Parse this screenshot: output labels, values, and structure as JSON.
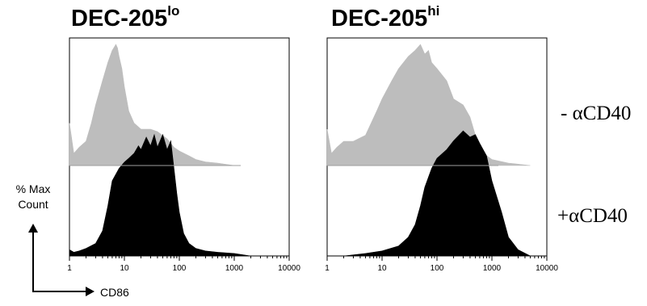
{
  "chart_data": [
    {
      "type": "area",
      "title": "DEC-205",
      "title_superscript": "lo",
      "xscale": "log",
      "xlim": [
        1,
        10000
      ],
      "xticks": [
        "1",
        "10",
        "100",
        "1000",
        "10000"
      ],
      "xlabel": "CD86",
      "ylabel": "% Max Count",
      "series": [
        {
          "name": "- αCD40",
          "color": "#bdbdbd",
          "x": [
            1,
            1.2,
            1.5,
            2,
            2.5,
            3,
            4,
            5,
            6,
            7,
            7.5,
            8,
            9,
            10,
            12,
            15,
            20,
            30,
            40,
            60,
            80,
            100,
            150,
            200,
            300,
            500,
            1000
          ],
          "y": [
            0.35,
            0.1,
            0.15,
            0.2,
            0.35,
            0.5,
            0.7,
            0.85,
            0.95,
            1.0,
            0.97,
            0.9,
            0.8,
            0.65,
            0.45,
            0.35,
            0.3,
            0.3,
            0.28,
            0.22,
            0.15,
            0.12,
            0.08,
            0.05,
            0.03,
            0.02,
            0.0
          ]
        },
        {
          "name": "+αCD40",
          "color": "#000000",
          "x": [
            1,
            1.2,
            1.5,
            2,
            3,
            4,
            5,
            6,
            8,
            10,
            12,
            15,
            18,
            20,
            25,
            30,
            35,
            40,
            50,
            60,
            70,
            80,
            90,
            100,
            120,
            150,
            200,
            300,
            500,
            1000,
            2000
          ],
          "y": [
            0.05,
            0.03,
            0.04,
            0.06,
            0.1,
            0.2,
            0.4,
            0.6,
            0.7,
            0.75,
            0.78,
            0.82,
            0.88,
            0.85,
            0.95,
            0.88,
            0.97,
            0.87,
            0.97,
            0.85,
            0.92,
            0.7,
            0.5,
            0.35,
            0.18,
            0.1,
            0.06,
            0.04,
            0.03,
            0.02,
            0.0
          ]
        }
      ]
    },
    {
      "type": "area",
      "title": "DEC-205",
      "title_superscript": "hi",
      "xscale": "log",
      "xlim": [
        1,
        10000
      ],
      "xticks": [
        "1",
        "10",
        "100",
        "1000",
        "10000"
      ],
      "xlabel": "CD86",
      "ylabel": "% Max Count",
      "series": [
        {
          "name": "- αCD40",
          "color": "#bdbdbd",
          "x": [
            1,
            1.2,
            1.5,
            2,
            3,
            5,
            8,
            10,
            15,
            20,
            30,
            40,
            50,
            60,
            70,
            80,
            100,
            150,
            200,
            300,
            400,
            500,
            700,
            1000,
            2000,
            5000
          ],
          "y": [
            0.3,
            0.1,
            0.15,
            0.2,
            0.2,
            0.25,
            0.45,
            0.55,
            0.7,
            0.8,
            0.9,
            0.95,
            1.0,
            0.92,
            0.95,
            0.85,
            0.8,
            0.7,
            0.55,
            0.5,
            0.4,
            0.25,
            0.1,
            0.05,
            0.02,
            0.0
          ]
        },
        {
          "name": "+αCD40",
          "color": "#000000",
          "x": [
            1,
            2,
            5,
            10,
            20,
            30,
            40,
            50,
            60,
            80,
            100,
            150,
            200,
            300,
            400,
            500,
            600,
            800,
            1000,
            1500,
            2000,
            3000,
            5000
          ],
          "y": [
            0.0,
            0.0,
            0.02,
            0.04,
            0.08,
            0.15,
            0.25,
            0.4,
            0.55,
            0.7,
            0.78,
            0.85,
            0.92,
            1.0,
            0.95,
            0.97,
            0.9,
            0.8,
            0.6,
            0.35,
            0.15,
            0.05,
            0.0
          ]
        }
      ]
    }
  ],
  "panel1": {
    "title": "DEC-205",
    "superscript": "lo"
  },
  "panel2": {
    "title": "DEC-205",
    "superscript": "hi"
  },
  "row_top_label": "- αCD40",
  "row_bottom_label": "+αCD40",
  "ylabel_line1": "% Max",
  "ylabel_line2": "Count",
  "xlabel": "CD86"
}
